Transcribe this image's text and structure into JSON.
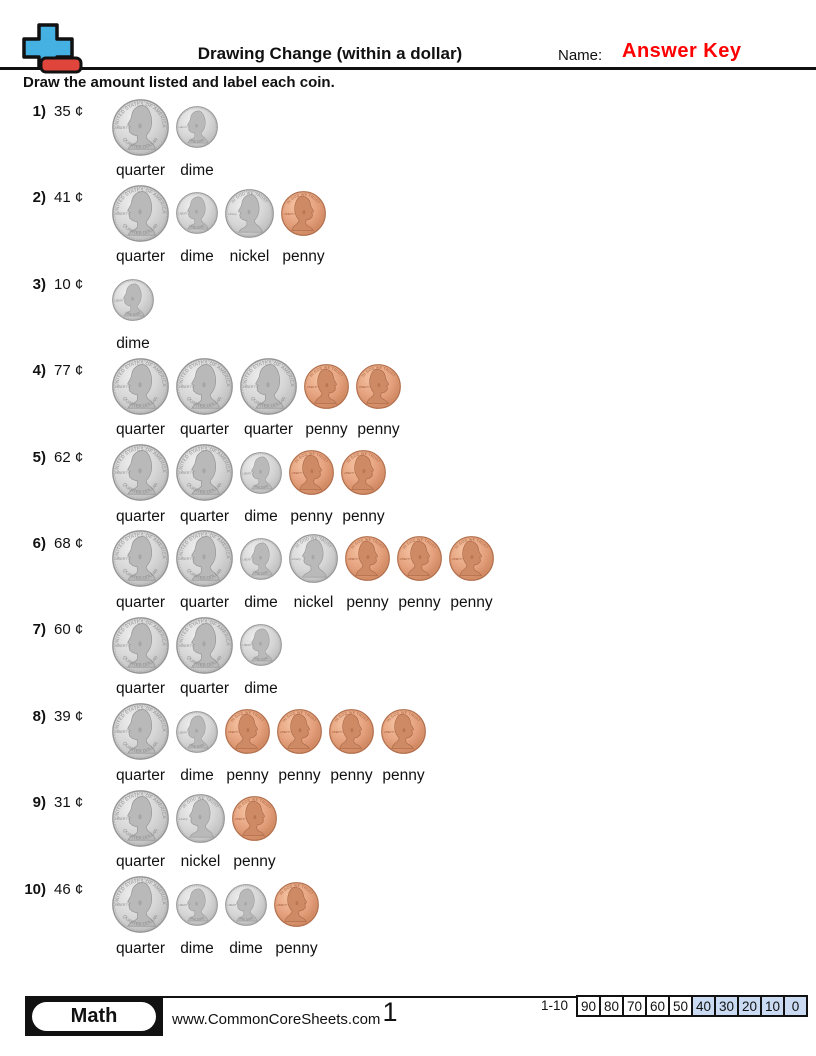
{
  "header": {
    "title": "Drawing Change (within a dollar)",
    "name_label": "Name:",
    "answer_key_text": "Answer Key",
    "instruction": "Draw the amount listed and label each coin."
  },
  "colors": {
    "answer_key_red": "#fe0000",
    "score_highlight_blue": "#c9daf2",
    "logo_blue": "#45b1e2",
    "logo_red": "#e0453c",
    "coin_silver": "#d6d6d6",
    "coin_copper": "#e5a17e"
  },
  "coin_types": {
    "quarter": {
      "label": "quarter",
      "metal": "silver",
      "faces": "left",
      "top_text": "UNITED STATES OF AMERICA",
      "bottom_text": "QUARTER DOLLAR",
      "side_text": "LIBERTY"
    },
    "dime": {
      "label": "dime",
      "metal": "silver",
      "faces": "left",
      "top_text": "",
      "bottom_text": "ONE DIME",
      "side_text": "LIBERTY"
    },
    "nickel": {
      "label": "nickel",
      "metal": "silver",
      "faces": "left",
      "top_text": "IN GOD WE TRUST",
      "bottom_text": "",
      "side_text": "Liberty"
    },
    "penny": {
      "label": "penny",
      "metal": "copper",
      "faces": "right",
      "top_text": "IN GOD WE TRUST",
      "bottom_text": "",
      "side_text": "LIBERTY"
    }
  },
  "problems": [
    {
      "number": "1)",
      "amount": "35 ¢",
      "coins": [
        "quarter",
        "dime"
      ]
    },
    {
      "number": "2)",
      "amount": "41 ¢",
      "coins": [
        "quarter",
        "dime",
        "nickel",
        "penny"
      ]
    },
    {
      "number": "3)",
      "amount": "10 ¢",
      "coins": [
        "dime"
      ]
    },
    {
      "number": "4)",
      "amount": "77 ¢",
      "coins": [
        "quarter",
        "quarter",
        "quarter",
        "penny",
        "penny"
      ]
    },
    {
      "number": "5)",
      "amount": "62 ¢",
      "coins": [
        "quarter",
        "quarter",
        "dime",
        "penny",
        "penny"
      ]
    },
    {
      "number": "6)",
      "amount": "68 ¢",
      "coins": [
        "quarter",
        "quarter",
        "dime",
        "nickel",
        "penny",
        "penny",
        "penny"
      ]
    },
    {
      "number": "7)",
      "amount": "60 ¢",
      "coins": [
        "quarter",
        "quarter",
        "dime"
      ]
    },
    {
      "number": "8)",
      "amount": "39 ¢",
      "coins": [
        "quarter",
        "dime",
        "penny",
        "penny",
        "penny",
        "penny"
      ]
    },
    {
      "number": "9)",
      "amount": "31 ¢",
      "coins": [
        "quarter",
        "nickel",
        "penny"
      ]
    },
    {
      "number": "10)",
      "amount": "46 ¢",
      "coins": [
        "quarter",
        "dime",
        "dime",
        "penny"
      ]
    }
  ],
  "footer": {
    "subject_badge": "Math",
    "website": "www.CommonCoreSheets.com",
    "page_number": "1",
    "score_range_label": "1-10",
    "score_cells": [
      "90",
      "80",
      "70",
      "60",
      "50",
      "40",
      "30",
      "20",
      "10",
      "0"
    ],
    "score_highlighted": [
      "40",
      "30",
      "20",
      "10",
      "0"
    ]
  }
}
